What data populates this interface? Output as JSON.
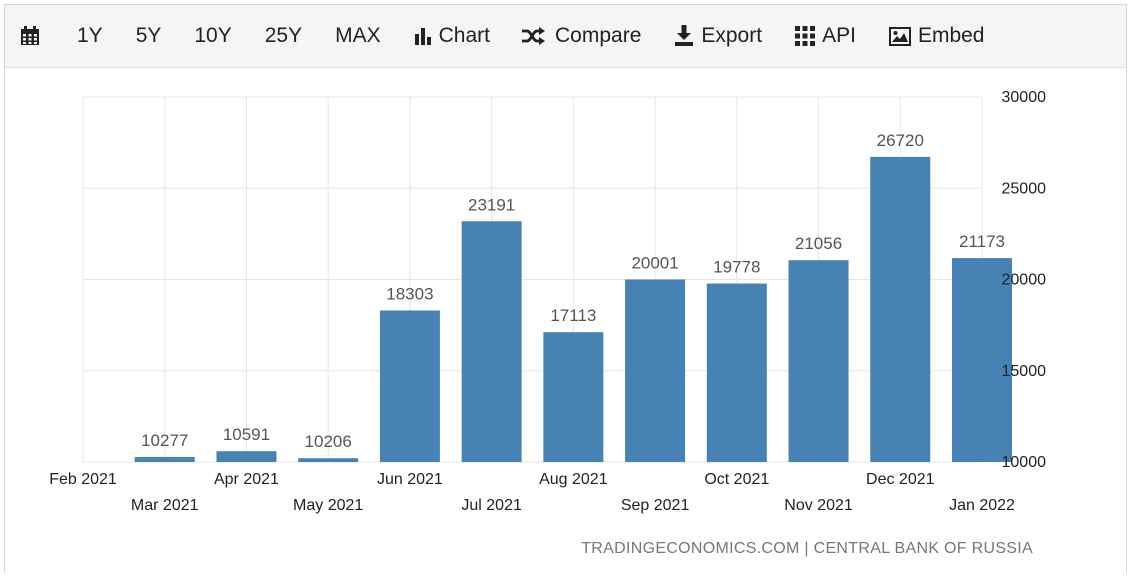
{
  "toolbar": {
    "items": [
      {
        "icon": "calendar-icon",
        "label": ""
      },
      {
        "icon": "",
        "label": "1Y"
      },
      {
        "icon": "",
        "label": "5Y"
      },
      {
        "icon": "",
        "label": "10Y"
      },
      {
        "icon": "",
        "label": "25Y"
      },
      {
        "icon": "",
        "label": "MAX"
      },
      {
        "icon": "bar-chart-icon",
        "label": "Chart"
      },
      {
        "icon": "shuffle-icon",
        "label": "Compare"
      },
      {
        "icon": "download-icon",
        "label": "Export"
      },
      {
        "icon": "grid-icon",
        "label": "API"
      },
      {
        "icon": "image-icon",
        "label": "Embed"
      }
    ]
  },
  "source_text": "TRADINGECONOMICS.COM | CENTRAL BANK OF RUSSIA",
  "colors": {
    "bar": "#4682b4",
    "grid": "#e6e6e6",
    "axis_text": "#222222",
    "value_text": "#555555"
  },
  "chart_data": {
    "type": "bar",
    "categories": [
      "Feb 2021",
      "Mar 2021",
      "Apr 2021",
      "May 2021",
      "Jun 2021",
      "Jul 2021",
      "Aug 2021",
      "Sep 2021",
      "Oct 2021",
      "Nov 2021",
      "Dec 2021",
      "Jan 2022"
    ],
    "values": [
      null,
      10277,
      10591,
      10206,
      18303,
      23191,
      17113,
      20001,
      19778,
      21056,
      26720,
      21173
    ],
    "ylim": [
      10000,
      30000
    ],
    "yticks": [
      10000,
      15000,
      20000,
      25000,
      30000
    ],
    "y_axis_side": "right",
    "grid": true,
    "title": "",
    "xlabel": "",
    "ylabel": ""
  }
}
